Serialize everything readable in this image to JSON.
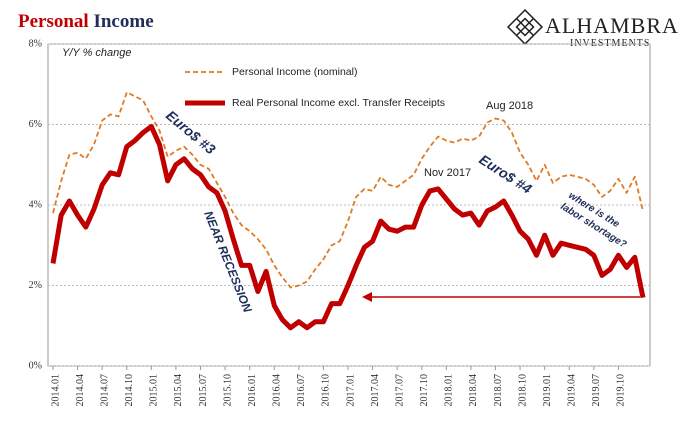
{
  "logo": {
    "name": "ALHAMBRA",
    "tagline": "INVESTMENTS"
  },
  "chart_data": {
    "type": "line",
    "title": [
      "Personal",
      "Income"
    ],
    "annotations": [
      "Y/Y % change",
      "Euro$ #3",
      "NEAR RECESSION",
      "Nov 2017",
      "Aug 2018",
      "Euro$ #4",
      "where is the",
      "labor shortage?"
    ],
    "categories": [
      "2014.01",
      null,
      null,
      "2014.04",
      null,
      null,
      "2014.07",
      null,
      null,
      "2014.10",
      null,
      null,
      "2015.01",
      null,
      null,
      "2015.04",
      null,
      null,
      "2015.07",
      null,
      null,
      "2015.10",
      null,
      null,
      "2016.01",
      null,
      null,
      "2016.04",
      null,
      null,
      "2016.07",
      null,
      null,
      "2016.10",
      null,
      null,
      "2017.01",
      null,
      null,
      "2017.04",
      null,
      null,
      "2017.07",
      null,
      null,
      "2017.10",
      null,
      null,
      "2018.01",
      null,
      null,
      "2018.04",
      null,
      null,
      "2018.07",
      null,
      null,
      "2018.10",
      null,
      null,
      "2019.01",
      null,
      null,
      "2019.04",
      null,
      null,
      "2019.07",
      null,
      null,
      "2019.10",
      null,
      null,
      null
    ],
    "series": [
      {
        "name": "Personal Income (nominal)",
        "color": "#e07b24",
        "dashed": true,
        "values": [
          3.8,
          4.6,
          5.25,
          5.3,
          5.15,
          5.5,
          6.1,
          6.25,
          6.2,
          6.8,
          6.7,
          6.6,
          6.2,
          5.85,
          5.2,
          5.35,
          5.45,
          5.25,
          5.0,
          4.9,
          4.55,
          4.2,
          3.8,
          3.5,
          3.35,
          3.15,
          2.9,
          2.5,
          2.2,
          1.95,
          2.0,
          2.1,
          2.4,
          2.65,
          3.0,
          3.1,
          3.6,
          4.2,
          4.4,
          4.35,
          4.7,
          4.5,
          4.45,
          4.6,
          4.75,
          5.15,
          5.45,
          5.7,
          5.6,
          5.55,
          5.65,
          5.6,
          5.7,
          6.05,
          6.15,
          6.1,
          5.8,
          5.3,
          5.0,
          4.6,
          5.0,
          4.55,
          4.7,
          4.75,
          4.7,
          4.65,
          4.5,
          4.2,
          4.35,
          4.65,
          4.3,
          4.7,
          3.85
        ]
      },
      {
        "name": "Real Personal Income excl. Transfer Receipts",
        "color": "#c00000",
        "dashed": false,
        "values": [
          2.55,
          3.75,
          4.1,
          3.75,
          3.45,
          3.9,
          4.5,
          4.8,
          4.75,
          5.45,
          5.6,
          5.8,
          5.95,
          5.5,
          4.6,
          5.0,
          5.15,
          4.9,
          4.75,
          4.45,
          4.3,
          3.85,
          3.15,
          2.5,
          2.5,
          1.85,
          2.35,
          1.5,
          1.15,
          0.95,
          1.1,
          0.95,
          1.1,
          1.1,
          1.55,
          1.55,
          2.0,
          2.5,
          2.95,
          3.1,
          3.6,
          3.4,
          3.35,
          3.45,
          3.45,
          4.0,
          4.35,
          4.4,
          4.15,
          3.9,
          3.75,
          3.8,
          3.5,
          3.85,
          3.95,
          4.1,
          3.75,
          3.35,
          3.15,
          2.75,
          3.25,
          2.75,
          3.05,
          3.0,
          2.95,
          2.9,
          2.75,
          2.25,
          2.4,
          2.75,
          2.45,
          2.7,
          1.7
        ]
      }
    ],
    "ylim": [
      0,
      8
    ],
    "yticks": [
      {
        "value": 0,
        "label": "0%"
      },
      {
        "value": 2,
        "label": "2%"
      },
      {
        "value": 4,
        "label": "4%"
      },
      {
        "value": 6,
        "label": "6%"
      },
      {
        "value": 8,
        "label": "8%"
      }
    ],
    "grid": true
  }
}
